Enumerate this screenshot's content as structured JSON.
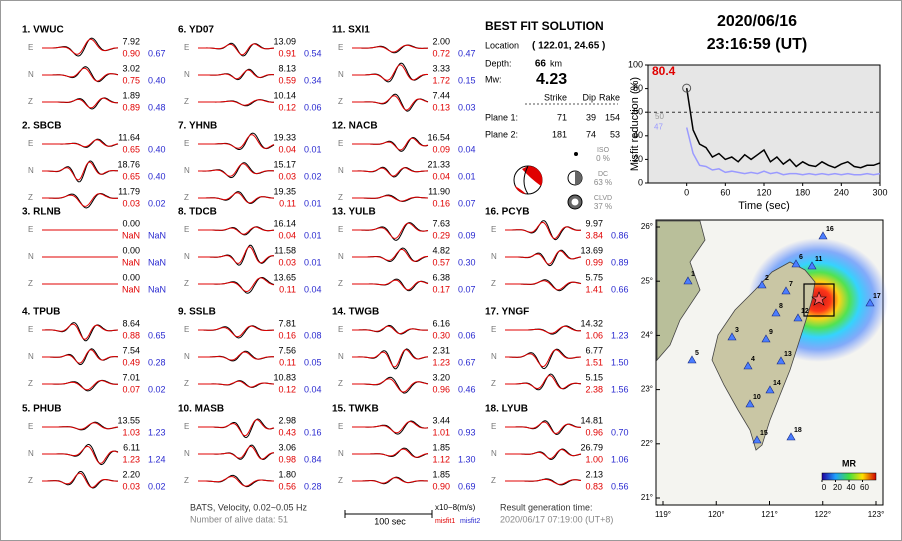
{
  "stations": [
    {
      "id": "1.  VWUC",
      "comps": [
        {
          "c": "E",
          "amp": "7.92",
          "m1": "0.90",
          "m2": "0.67"
        },
        {
          "c": "N",
          "amp": "3.02",
          "m1": "0.75",
          "m2": "0.40"
        },
        {
          "c": "Z",
          "amp": "1.89",
          "m1": "0.89",
          "m2": "0.48"
        }
      ]
    },
    {
      "id": "2.  SBCB",
      "comps": [
        {
          "c": "E",
          "amp": "11.64",
          "m1": "0.65",
          "m2": "0.40"
        },
        {
          "c": "N",
          "amp": "18.76",
          "m1": "0.65",
          "m2": "0.40"
        },
        {
          "c": "Z",
          "amp": "11.79",
          "m1": "0.03",
          "m2": "0.02"
        }
      ]
    },
    {
      "id": "3.  RLNB",
      "comps": [
        {
          "c": "E",
          "amp": "0.00",
          "m1": "NaN",
          "m2": "NaN"
        },
        {
          "c": "N",
          "amp": "0.00",
          "m1": "NaN",
          "m2": "NaN"
        },
        {
          "c": "Z",
          "amp": "0.00",
          "m1": "NaN",
          "m2": "NaN"
        }
      ]
    },
    {
      "id": "4.  TPUB",
      "comps": [
        {
          "c": "E",
          "amp": "8.64",
          "m1": "0.88",
          "m2": "0.65"
        },
        {
          "c": "N",
          "amp": "7.54",
          "m1": "0.49",
          "m2": "0.28"
        },
        {
          "c": "Z",
          "amp": "7.01",
          "m1": "0.07",
          "m2": "0.02"
        }
      ]
    },
    {
      "id": "5.  PHUB",
      "comps": [
        {
          "c": "E",
          "amp": "13.55",
          "m1": "1.03",
          "m2": "1.23"
        },
        {
          "c": "N",
          "amp": "6.11",
          "m1": "1.23",
          "m2": "1.24"
        },
        {
          "c": "Z",
          "amp": "2.20",
          "m1": "0.03",
          "m2": "0.02"
        }
      ]
    },
    {
      "id": "6.  YD07",
      "comps": [
        {
          "c": "E",
          "amp": "13.09",
          "m1": "0.91",
          "m2": "0.54"
        },
        {
          "c": "N",
          "amp": "8.13",
          "m1": "0.59",
          "m2": "0.34"
        },
        {
          "c": "Z",
          "amp": "10.14",
          "m1": "0.12",
          "m2": "0.06"
        }
      ]
    },
    {
      "id": "7.  YHNB",
      "comps": [
        {
          "c": "E",
          "amp": "19.33",
          "m1": "0.04",
          "m2": "0.01"
        },
        {
          "c": "N",
          "amp": "15.17",
          "m1": "0.03",
          "m2": "0.02"
        },
        {
          "c": "Z",
          "amp": "19.35",
          "m1": "0.11",
          "m2": "0.01"
        }
      ]
    },
    {
      "id": "8.  TDCB",
      "comps": [
        {
          "c": "E",
          "amp": "16.14",
          "m1": "0.04",
          "m2": "0.01"
        },
        {
          "c": "N",
          "amp": "11.58",
          "m1": "0.03",
          "m2": "0.01"
        },
        {
          "c": "Z",
          "amp": "13.65",
          "m1": "0.11",
          "m2": "0.04"
        }
      ]
    },
    {
      "id": "9.  SSLB",
      "comps": [
        {
          "c": "E",
          "amp": "7.81",
          "m1": "0.16",
          "m2": "0.08"
        },
        {
          "c": "N",
          "amp": "7.56",
          "m1": "0.11",
          "m2": "0.05"
        },
        {
          "c": "Z",
          "amp": "10.83",
          "m1": "0.12",
          "m2": "0.04"
        }
      ]
    },
    {
      "id": "10. MASB",
      "comps": [
        {
          "c": "E",
          "amp": "2.98",
          "m1": "0.43",
          "m2": "0.16"
        },
        {
          "c": "N",
          "amp": "3.06",
          "m1": "0.98",
          "m2": "0.84"
        },
        {
          "c": "Z",
          "amp": "1.80",
          "m1": "0.56",
          "m2": "0.28"
        }
      ]
    },
    {
      "id": "11. SXI1",
      "comps": [
        {
          "c": "E",
          "amp": "2.00",
          "m1": "0.72",
          "m2": "0.47"
        },
        {
          "c": "N",
          "amp": "3.33",
          "m1": "1.72",
          "m2": "0.15"
        },
        {
          "c": "Z",
          "amp": "7.44",
          "m1": "0.13",
          "m2": "0.03"
        }
      ]
    },
    {
      "id": "12. NACB",
      "comps": [
        {
          "c": "E",
          "amp": "16.54",
          "m1": "0.09",
          "m2": "0.04"
        },
        {
          "c": "N",
          "amp": "21.33",
          "m1": "0.04",
          "m2": "0.01"
        },
        {
          "c": "Z",
          "amp": "11.90",
          "m1": "0.16",
          "m2": "0.07"
        }
      ]
    },
    {
      "id": "13. YULB",
      "comps": [
        {
          "c": "E",
          "amp": "7.63",
          "m1": "0.29",
          "m2": "0.09"
        },
        {
          "c": "N",
          "amp": "4.82",
          "m1": "0.57",
          "m2": "0.30"
        },
        {
          "c": "Z",
          "amp": "6.38",
          "m1": "0.17",
          "m2": "0.07"
        }
      ]
    },
    {
      "id": "14. TWGB",
      "comps": [
        {
          "c": "E",
          "amp": "6.16",
          "m1": "0.30",
          "m2": "0.06"
        },
        {
          "c": "N",
          "amp": "2.31",
          "m1": "1.23",
          "m2": "0.67"
        },
        {
          "c": "Z",
          "amp": "3.20",
          "m1": "0.96",
          "m2": "0.46"
        }
      ]
    },
    {
      "id": "15. TWKB",
      "comps": [
        {
          "c": "E",
          "amp": "3.44",
          "m1": "1.01",
          "m2": "0.93"
        },
        {
          "c": "N",
          "amp": "1.85",
          "m1": "1.12",
          "m2": "1.30"
        },
        {
          "c": "Z",
          "amp": "1.85",
          "m1": "0.90",
          "m2": "0.69"
        }
      ]
    },
    {
      "id": "16. PCYB",
      "comps": [
        {
          "c": "E",
          "amp": "9.97",
          "m1": "3.84",
          "m2": "0.86"
        },
        {
          "c": "N",
          "amp": "13.69",
          "m1": "0.99",
          "m2": "0.89"
        },
        {
          "c": "Z",
          "amp": "5.75",
          "m1": "1.41",
          "m2": "0.66"
        }
      ]
    },
    {
      "id": "17. YNGF",
      "comps": [
        {
          "c": "E",
          "amp": "14.32",
          "m1": "1.06",
          "m2": "1.23"
        },
        {
          "c": "N",
          "amp": "6.77",
          "m1": "1.51",
          "m2": "1.50"
        },
        {
          "c": "Z",
          "amp": "5.15",
          "m1": "2.38",
          "m2": "1.56"
        }
      ]
    },
    {
      "id": "18. LYUB",
      "comps": [
        {
          "c": "E",
          "amp": "14.81",
          "m1": "0.96",
          "m2": "0.70"
        },
        {
          "c": "N",
          "amp": "26.79",
          "m1": "1.00",
          "m2": "1.06"
        },
        {
          "c": "Z",
          "amp": "2.13",
          "m1": "0.83",
          "m2": "0.56"
        }
      ]
    }
  ],
  "solution": {
    "title": "BEST FIT SOLUTION",
    "location_label": "Location",
    "location": "( 122.01, 24.65 )",
    "depth_label": "Depth:",
    "depth": "66",
    "depth_unit": "km",
    "mw_label": "Mw:",
    "mw": "4.23",
    "headers": [
      "Strike",
      "Dip",
      "Rake"
    ],
    "planes": [
      {
        "label": "Plane 1:",
        "values": [
          "71",
          "39",
          "154"
        ]
      },
      {
        "label": "Plane 2:",
        "values": [
          "181",
          "74",
          "53"
        ]
      }
    ],
    "components": [
      {
        "name": "ISO",
        "pct": "0 %"
      },
      {
        "name": "DC",
        "pct": "63 %"
      },
      {
        "name": "CLVD",
        "pct": "37 %"
      }
    ]
  },
  "header": {
    "date": "2020/06/16",
    "time": "23:16:59  (UT)"
  },
  "chart_data": {
    "type": "line",
    "ylabel": "Misfit reduction (%)",
    "xlabel": "Time (sec)",
    "x": [
      0,
      10,
      20,
      30,
      40,
      50,
      60,
      70,
      80,
      90,
      100,
      110,
      120,
      130,
      140,
      150,
      160,
      170,
      180,
      190,
      200,
      210,
      220,
      230,
      240,
      250,
      260,
      270,
      280,
      290,
      300
    ],
    "series": [
      {
        "color": "#000000",
        "values": [
          80.4,
          45,
          33,
          30,
          22,
          25,
          20,
          22,
          18,
          24,
          20,
          24,
          28,
          18,
          22,
          16,
          20,
          14,
          18,
          15,
          14,
          18,
          15,
          13,
          16,
          18,
          14,
          13,
          15,
          15,
          17
        ]
      },
      {
        "color": "#9a9aff",
        "values": [
          47,
          25,
          15,
          14,
          11,
          12,
          9,
          10,
          9,
          8,
          9,
          8,
          10,
          8,
          9,
          7,
          8,
          8,
          7,
          8,
          7,
          8,
          7,
          8,
          7,
          8,
          7,
          7,
          8,
          7,
          8
        ]
      }
    ],
    "annotations": [
      {
        "text": "80.4",
        "color": "#e00000"
      },
      {
        "text": "50",
        "color": "#999999"
      },
      {
        "text": "47",
        "color": "#9a9aff"
      }
    ],
    "threshold": 60,
    "xlim": [
      -60,
      300
    ],
    "ylim": [
      0,
      100
    ],
    "xticks": [
      0,
      60,
      120,
      180,
      240,
      300
    ],
    "yticks": [
      0,
      20,
      40,
      60,
      80,
      100
    ]
  },
  "map": {
    "lonticks": [
      {
        "value": 119,
        "label": "119°"
      },
      {
        "value": 120,
        "label": "120°"
      },
      {
        "value": 121,
        "label": "121°"
      },
      {
        "value": 122,
        "label": "122°"
      },
      {
        "value": 123,
        "label": "123°"
      }
    ],
    "latticks": [
      {
        "value": 21,
        "label": "21°"
      },
      {
        "value": 22,
        "label": "22°"
      },
      {
        "value": 23,
        "label": "23°"
      },
      {
        "value": 24,
        "label": "24°"
      },
      {
        "value": 25,
        "label": "25°"
      },
      {
        "value": 26,
        "label": "26°"
      }
    ],
    "lonlim": [
      119,
      123
    ],
    "latlim": [
      21,
      26
    ],
    "station_labels": [
      "1",
      "2",
      "3",
      "4",
      "5",
      "6",
      "7",
      "8",
      "9",
      "10",
      "11",
      "12",
      "13",
      "14",
      "15",
      "16",
      "17",
      "18"
    ],
    "colorbar_title": "MR",
    "colorbar_ticks": [
      0,
      20,
      40,
      60
    ],
    "colorbar_lim": [
      0,
      80
    ]
  },
  "footer": {
    "source": "BATS, Velocity, 0.02~0.05 Hz",
    "alive": "Number of alive data: 51",
    "scale": "100 sec",
    "units": "x10−8(m/s)",
    "misfit1": "misfit1",
    "misfit2": "misfit2",
    "gen_label": "Result generation time:",
    "gen_time": "2020/06/17 07:19:00 (UT+8)"
  }
}
